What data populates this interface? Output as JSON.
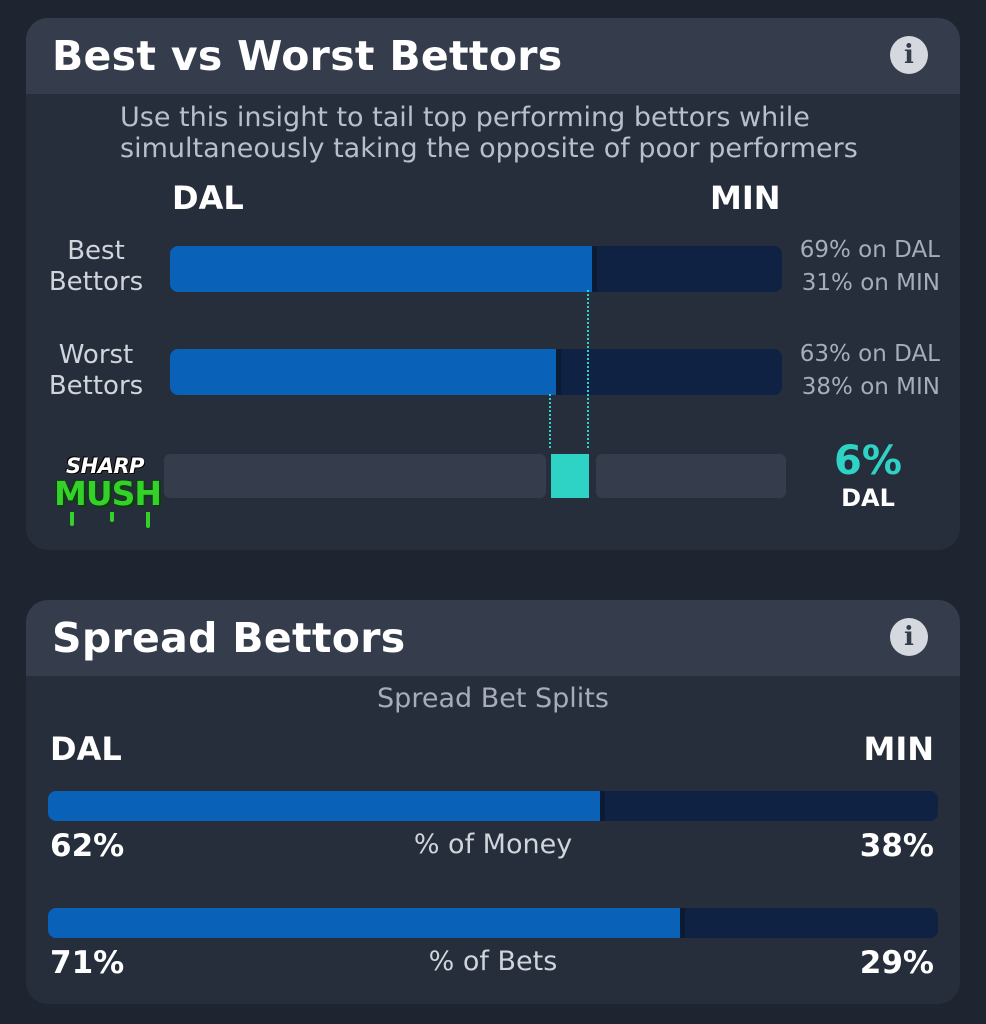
{
  "best_vs_worst": {
    "title": "Best vs Worst Bettors",
    "description": "Use this insight to tail top performing bettors while simultaneously taking the opposite of poor performers",
    "team_left": "DAL",
    "team_right": "MIN",
    "rows": [
      {
        "label_line1": "Best",
        "label_line2": "Bettors",
        "left_pct": 69,
        "left_text": "69% on DAL",
        "right_text": "31% on MIN"
      },
      {
        "label_line1": "Worst",
        "label_line2": "Bettors",
        "left_pct": 63,
        "left_text": "63% on DAL",
        "right_text": "38% on MIN"
      }
    ],
    "sharp_mush": {
      "logo_top": "SHARP",
      "logo_bottom": "MUSH",
      "value": "6%",
      "team": "DAL"
    }
  },
  "spread_bettors": {
    "title": "Spread Bettors",
    "subtitle": "Spread Bet Splits",
    "team_left": "DAL",
    "team_right": "MIN",
    "metrics": [
      {
        "label": "% of Money",
        "left": "62%",
        "right": "38%",
        "left_fraction": 0.62
      },
      {
        "label": "% of Bets",
        "left": "71%",
        "right": "29%",
        "left_fraction": 0.71
      }
    ]
  },
  "colors": {
    "background": "#1e2430",
    "card": "#262d3b",
    "header": "#353d4c",
    "dal_blue": "#0a62b8",
    "min_navy": "#0f2244",
    "accent_teal": "#2fd3c6",
    "logo_green": "#34d12b"
  },
  "icons": {
    "info": "info-icon"
  }
}
